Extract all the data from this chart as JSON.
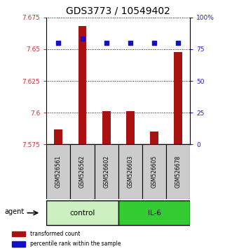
{
  "title": "GDS3773 / 10549402",
  "samples": [
    "GSM526561",
    "GSM526562",
    "GSM526602",
    "GSM526603",
    "GSM526605",
    "GSM526678"
  ],
  "bar_values": [
    7.587,
    7.668,
    7.601,
    7.601,
    7.585,
    7.648
  ],
  "bar_bottom": 7.575,
  "percentile_values": [
    80,
    83,
    80,
    80,
    80,
    80
  ],
  "percentile_yaxis_max": 100,
  "ylim_min": 7.575,
  "ylim_max": 7.675,
  "yticks": [
    7.575,
    7.6,
    7.625,
    7.65,
    7.675
  ],
  "ytick_labels": [
    "7.575",
    "7.6",
    "7.625",
    "7.65",
    "7.675"
  ],
  "right_yticks": [
    0,
    25,
    50,
    75,
    100
  ],
  "right_ytick_labels": [
    "0",
    "25",
    "50",
    "75",
    "100%"
  ],
  "bar_color": "#aa1111",
  "dot_color": "#1111cc",
  "control_color": "#ccf0c0",
  "il6_color": "#33cc33",
  "agent_label": "agent",
  "control_label": "control",
  "il6_label": "IL-6",
  "legend_bar_label": "transformed count",
  "legend_dot_label": "percentile rank within the sample",
  "left_tick_color": "#cc3333",
  "right_tick_color": "#2222bb",
  "title_fontsize": 10,
  "sample_box_color": "#cccccc",
  "n_control": 3,
  "n_il6": 3
}
